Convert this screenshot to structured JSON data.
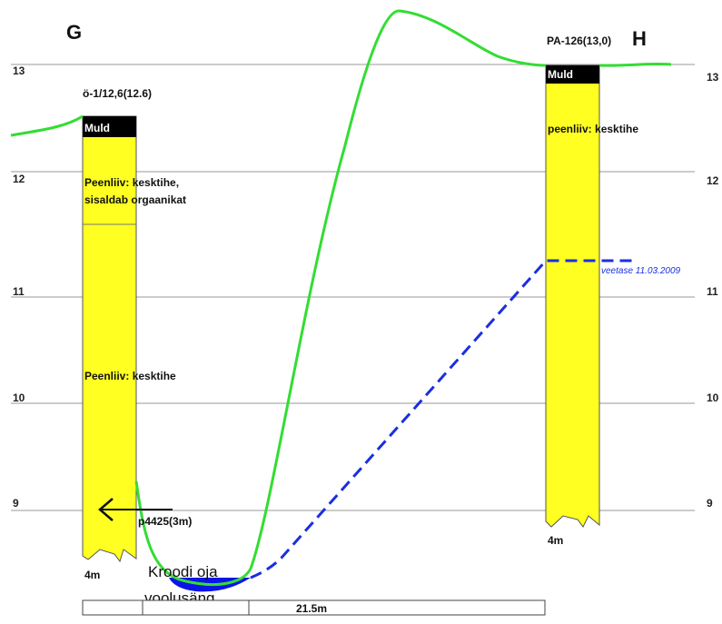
{
  "section": {
    "left_point": "G",
    "right_point": "H"
  },
  "elevation_axis": {
    "ticks": [
      "13",
      "12",
      "11",
      "10",
      "9"
    ]
  },
  "boreholes": [
    {
      "title": "ö-1/12,6(12.6)",
      "depth_label": "4m",
      "layers": [
        {
          "name": "Muld"
        },
        {
          "text_lines": [
            "Peenliiv: kesktihe,",
            "sisaldab orgaanikat"
          ]
        },
        {
          "text_lines": [
            "Peenliiv: kesktihe"
          ]
        }
      ]
    },
    {
      "title": "PA-126(13,0)",
      "depth_label": "4m",
      "layers": [
        {
          "name": "Muld"
        },
        {
          "text_lines": [
            "peenliiv: kesktihe"
          ]
        }
      ]
    }
  ],
  "reference_label": "p4425(3m)",
  "water_level_label": "veetase 11.03.2009",
  "stream": {
    "label_lines": [
      "Kroodi oja",
      "voolusäng"
    ]
  },
  "distance_label": "21.5m",
  "colors": {
    "terrain": "#33dd33",
    "borehole_fill": "#ffff22",
    "topsoil": "#000000",
    "water_line": "#1a2fe0",
    "stream_fill": "#0a14e8",
    "grid": "#999999"
  }
}
